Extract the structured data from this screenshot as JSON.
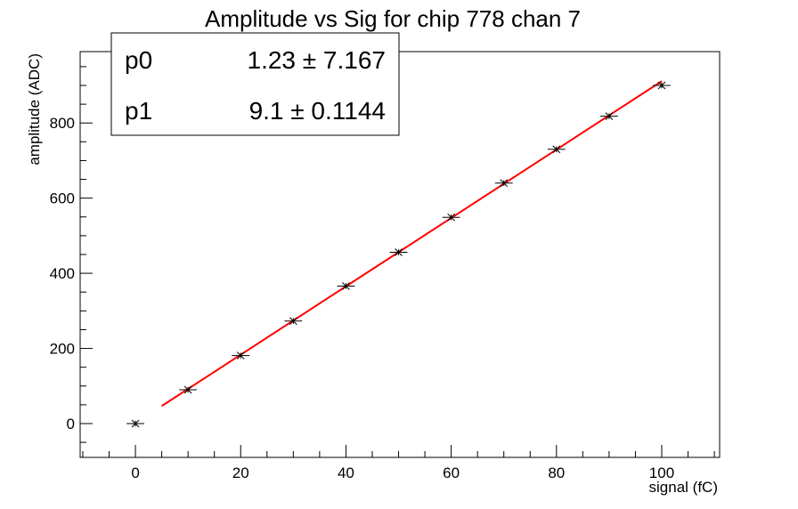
{
  "chart_data": {
    "type": "scatter",
    "title": "Amplitude vs Sig for chip 778 chan 7",
    "xlabel": "signal (fC)",
    "ylabel": "amplitude (ADC)",
    "xlim": [
      -10.5,
      111
    ],
    "ylim": [
      -90,
      990
    ],
    "x_ticks": [
      0,
      20,
      40,
      60,
      80,
      100
    ],
    "x_tick_labels": [
      "0",
      "20",
      "40",
      "60",
      "80",
      "100"
    ],
    "y_ticks": [
      0,
      200,
      400,
      600,
      800
    ],
    "y_tick_labels": [
      "0",
      "200",
      "400",
      "600",
      "800"
    ],
    "x_minor_step": 5,
    "y_minor_step": 50,
    "grid": false,
    "legend": "none",
    "series": [
      {
        "marker": "asterisk",
        "color": "#000000",
        "x": [
          0,
          10,
          20,
          30,
          40,
          50,
          60,
          70,
          80,
          90,
          100
        ],
        "y": [
          0,
          90,
          181,
          273,
          366,
          456,
          549,
          640,
          730,
          818,
          900
        ],
        "x_err": [
          1,
          1,
          1,
          1,
          1,
          1,
          1,
          1,
          1,
          1,
          1
        ],
        "y_err": [
          3,
          3,
          3,
          3,
          3,
          3,
          3,
          3,
          3,
          3,
          3
        ]
      }
    ],
    "fit": {
      "function": "p0 + p1*x",
      "color": "#ff0000",
      "x_range": [
        5,
        100
      ],
      "p0": 1.23,
      "p1": 9.1
    },
    "stats_box": {
      "placement": "top-left",
      "rows": [
        {
          "name": "p0",
          "value": "1.23",
          "pm": "±",
          "error": "7.167"
        },
        {
          "name": "p1",
          "value": "9.1",
          "pm": "±",
          "error": "0.1144"
        }
      ]
    }
  }
}
